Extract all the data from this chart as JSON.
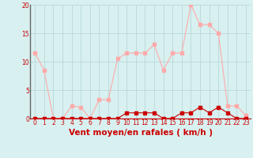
{
  "x": [
    0,
    1,
    2,
    3,
    4,
    5,
    6,
    7,
    8,
    9,
    10,
    11,
    12,
    13,
    14,
    15,
    16,
    17,
    18,
    19,
    20,
    21,
    22,
    23
  ],
  "wind_avg": [
    0,
    0,
    0,
    0,
    0,
    0,
    0,
    0,
    0,
    0,
    1,
    1,
    1,
    1,
    0,
    0,
    1,
    1,
    2,
    1,
    2,
    1,
    0,
    0
  ],
  "wind_gust": [
    11.5,
    8.5,
    0,
    0,
    2.2,
    2.0,
    0,
    3.3,
    3.3,
    10.5,
    11.5,
    11.5,
    11.5,
    13.0,
    8.5,
    11.5,
    11.5,
    20.0,
    16.5,
    16.5,
    15.0,
    2.2,
    2.2,
    0.5
  ],
  "xlabel": "Vent moyen/en rafales ( km/h )",
  "ylim": [
    0,
    20
  ],
  "xlim": [
    -0.5,
    23.5
  ],
  "yticks": [
    0,
    5,
    10,
    15,
    20
  ],
  "xticks": [
    0,
    1,
    2,
    3,
    4,
    5,
    6,
    7,
    8,
    9,
    10,
    11,
    12,
    13,
    14,
    15,
    16,
    17,
    18,
    19,
    20,
    21,
    22,
    23
  ],
  "bg_color": "#d8f0f0",
  "line_avg_color": "#cc0000",
  "line_gust_color": "#ffaaaa",
  "grid_color": "#b8d8d8",
  "marker_size": 2.5,
  "line_width": 0.8,
  "tick_fontsize": 5.5,
  "xlabel_fontsize": 7.5
}
